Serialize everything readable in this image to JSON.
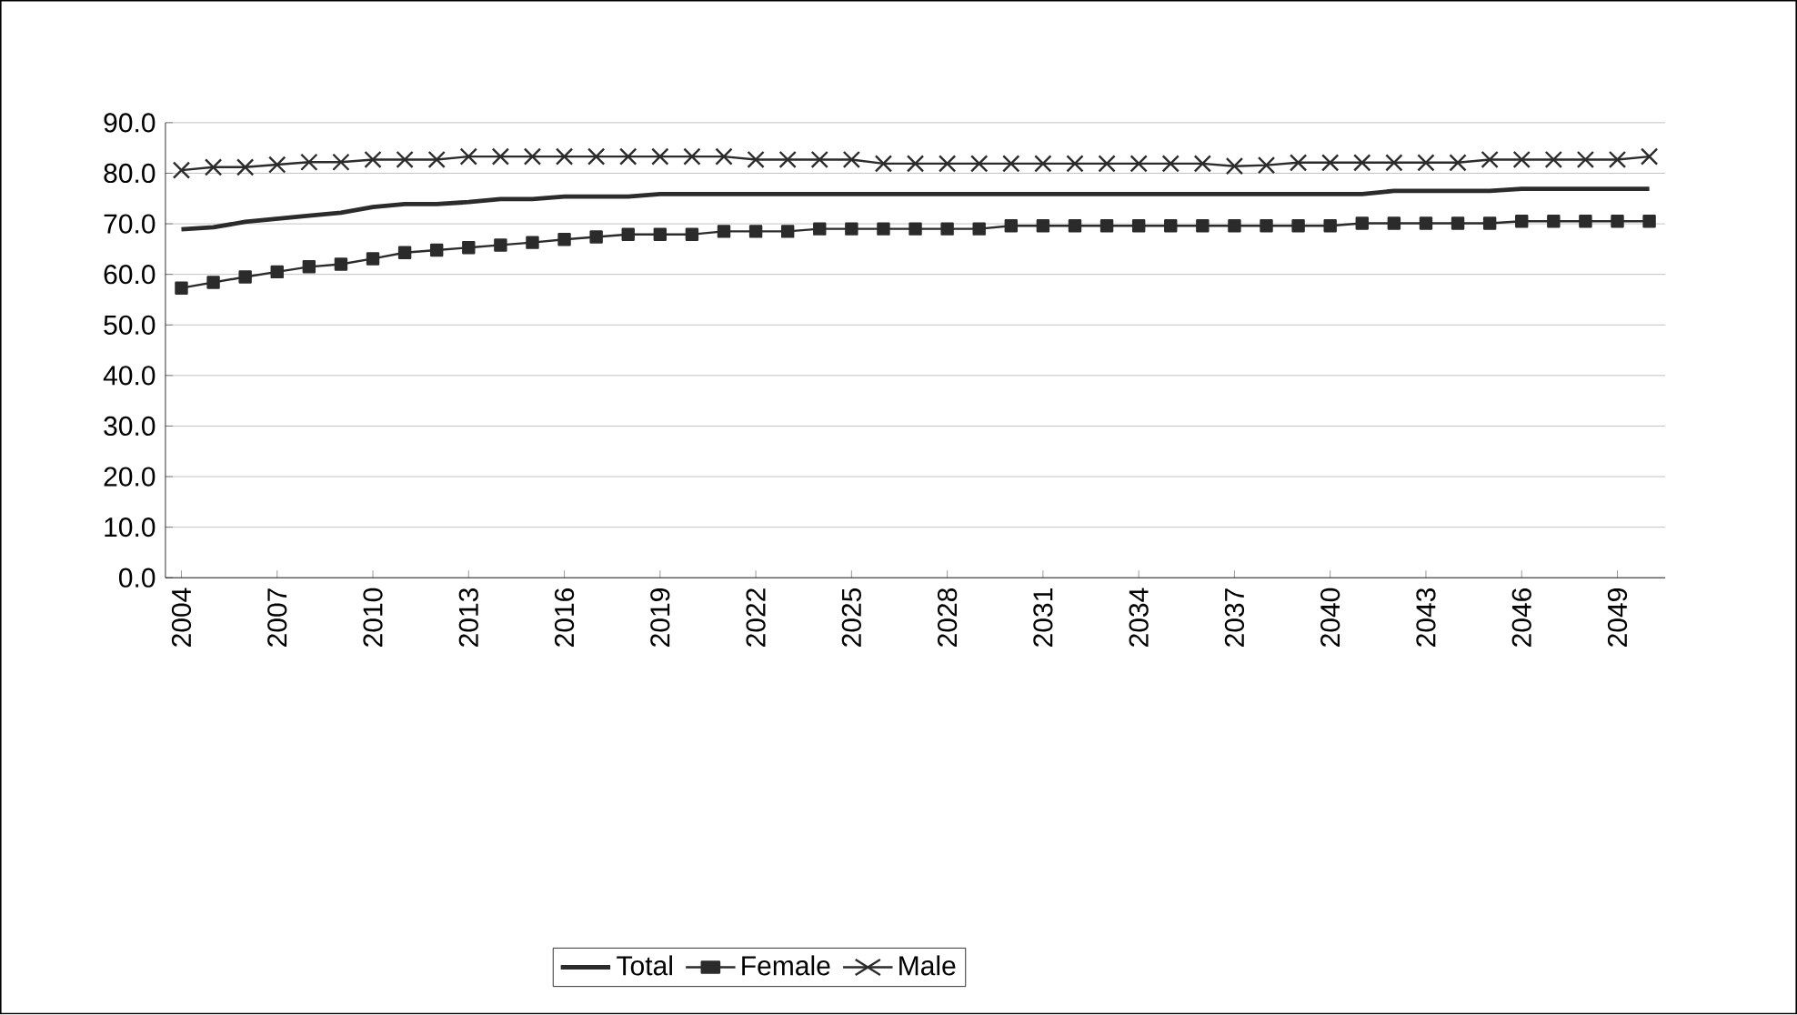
{
  "chart_data": {
    "type": "line",
    "x": [
      2004,
      2005,
      2006,
      2007,
      2008,
      2009,
      2010,
      2011,
      2012,
      2013,
      2014,
      2015,
      2016,
      2017,
      2018,
      2019,
      2020,
      2021,
      2022,
      2023,
      2024,
      2025,
      2026,
      2027,
      2028,
      2029,
      2030,
      2031,
      2032,
      2033,
      2034,
      2035,
      2036,
      2037,
      2038,
      2039,
      2040,
      2041,
      2042,
      2043,
      2044,
      2045,
      2046,
      2047,
      2048,
      2049,
      2050
    ],
    "series": [
      {
        "name": "Total",
        "color": "#2b2b2b",
        "marker": "none",
        "values": [
          68.9,
          69.3,
          70.4,
          71.0,
          71.6,
          72.2,
          73.3,
          73.9,
          73.9,
          74.3,
          74.9,
          74.9,
          75.4,
          75.4,
          75.4,
          75.9,
          75.9,
          75.9,
          75.9,
          75.9,
          75.9,
          75.9,
          75.9,
          75.9,
          75.9,
          75.9,
          75.9,
          75.9,
          75.9,
          75.9,
          75.9,
          75.9,
          75.9,
          75.9,
          75.9,
          75.9,
          75.9,
          75.9,
          76.5,
          76.5,
          76.5,
          76.5,
          76.9,
          76.9,
          76.9,
          76.9,
          76.9
        ]
      },
      {
        "name": "Female",
        "color": "#2b2b2b",
        "marker": "square",
        "values": [
          57.3,
          58.4,
          59.5,
          60.5,
          61.5,
          62.0,
          63.1,
          64.3,
          64.8,
          65.3,
          65.8,
          66.3,
          66.9,
          67.4,
          67.9,
          67.9,
          67.9,
          68.5,
          68.5,
          68.5,
          69.0,
          69.0,
          69.0,
          69.0,
          69.0,
          69.0,
          69.6,
          69.6,
          69.6,
          69.6,
          69.6,
          69.6,
          69.6,
          69.6,
          69.6,
          69.6,
          69.6,
          70.1,
          70.1,
          70.1,
          70.1,
          70.1,
          70.5,
          70.5,
          70.5,
          70.5,
          70.5
        ]
      },
      {
        "name": "Male",
        "color": "#2b2b2b",
        "marker": "cross",
        "values": [
          80.6,
          81.2,
          81.2,
          81.7,
          82.2,
          82.2,
          82.7,
          82.7,
          82.7,
          83.3,
          83.3,
          83.3,
          83.3,
          83.3,
          83.3,
          83.3,
          83.3,
          83.3,
          82.7,
          82.7,
          82.7,
          82.7,
          81.9,
          81.9,
          81.9,
          81.9,
          81.9,
          81.9,
          81.9,
          81.9,
          81.9,
          81.9,
          81.9,
          81.4,
          81.6,
          82.1,
          82.1,
          82.1,
          82.1,
          82.1,
          82.1,
          82.7,
          82.7,
          82.7,
          82.7,
          82.7,
          83.3
        ]
      }
    ],
    "xlim": [
      2003.5,
      2050.5
    ],
    "xticks": [
      2004,
      2007,
      2010,
      2013,
      2016,
      2019,
      2022,
      2025,
      2028,
      2031,
      2034,
      2037,
      2040,
      2043,
      2046,
      2049
    ],
    "ylim": [
      0,
      90
    ],
    "yticks": [
      {
        "value": 0,
        "label": "0.0"
      },
      {
        "value": 10,
        "label": "10.0"
      },
      {
        "value": 20,
        "label": "20.0"
      },
      {
        "value": 30,
        "label": "30.0"
      },
      {
        "value": 40,
        "label": "40.0"
      },
      {
        "value": 50,
        "label": "50.0"
      },
      {
        "value": 60,
        "label": "60.0"
      },
      {
        "value": 70,
        "label": "70.0"
      },
      {
        "value": 80,
        "label": "80.0"
      },
      {
        "value": 90,
        "label": "90.0"
      }
    ],
    "grid": "y",
    "legend": "bottom"
  }
}
